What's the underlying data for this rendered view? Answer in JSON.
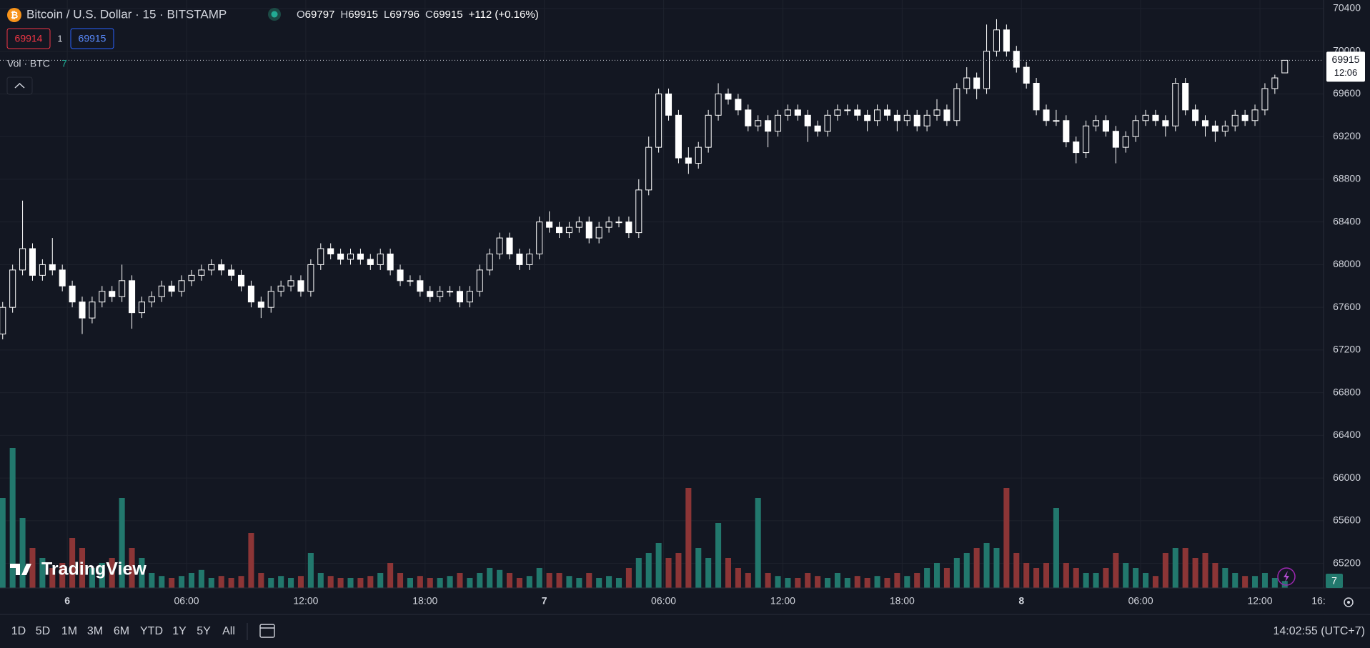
{
  "header": {
    "symbol": "Bitcoin / U.S. Dollar · 15 · BITSTAMP",
    "ohlc_labels": [
      "O",
      "H",
      "L",
      "C"
    ],
    "change": "+112 (+0.16%)",
    "sell": "69914",
    "spread": "1",
    "buy": "69915",
    "volume_label": "Vol · BTC",
    "countdown": "12:06",
    "logo": "TradingView"
  },
  "toolbar": {
    "ranges": [
      "1D",
      "5D",
      "1M",
      "3M",
      "6M",
      "YTD",
      "1Y",
      "5Y",
      "All"
    ],
    "clock": "14:02:55 (UTC+7)"
  },
  "chart_data": {
    "type": "candlestick",
    "up_color": "#ffffff",
    "down_color": "#ffffff",
    "volume_up_color": "#22786d",
    "volume_down_color": "#8c3536",
    "grid": true,
    "ylim": [
      64970,
      70480
    ],
    "yticks": [
      65200,
      65600,
      66000,
      66400,
      66800,
      67200,
      67600,
      68000,
      68400,
      68800,
      69200,
      69600,
      70000,
      70400
    ],
    "xlim": [
      -0.27,
      132.9
    ],
    "xticks": [
      {
        "value": 6.5,
        "label": "6"
      },
      {
        "value": 18.5,
        "label": "06:00"
      },
      {
        "value": 30.5,
        "label": "12:00"
      },
      {
        "value": 42.5,
        "label": "18:00"
      },
      {
        "value": 54.5,
        "label": "7"
      },
      {
        "value": 66.5,
        "label": "06:00"
      },
      {
        "value": 78.5,
        "label": "12:00"
      },
      {
        "value": 90.5,
        "label": "18:00"
      },
      {
        "value": 102.5,
        "label": "8"
      },
      {
        "value": 114.5,
        "label": "06:00"
      },
      {
        "value": 126.5,
        "label": "12:00"
      },
      {
        "value": 134.5,
        "label": "16:"
      }
    ],
    "volume_lim": [
      0,
      150
    ],
    "open": [
      67350,
      67600,
      67950,
      68150,
      67900,
      68000,
      67950,
      67800,
      67650,
      67500,
      67650,
      67750,
      67700,
      67850,
      67550,
      67650,
      67700,
      67800,
      67750,
      67850,
      67900,
      67950,
      68000,
      67950,
      67900,
      67800,
      67650,
      67600,
      67750,
      67800,
      67850,
      67750,
      68000,
      68150,
      68100,
      68050,
      68100,
      68050,
      68000,
      68100,
      67950,
      67850,
      67850,
      67750,
      67700,
      67750,
      67750,
      67650,
      67750,
      67950,
      68100,
      68250,
      68100,
      68000,
      68100,
      68400,
      68350,
      68300,
      68350,
      68400,
      68250,
      68350,
      68400,
      68400,
      68300,
      68700,
      69100,
      69600,
      69400,
      69000,
      68950,
      69100,
      69400,
      69600,
      69550,
      69450,
      69300,
      69350,
      69250,
      69400,
      69450,
      69400,
      69300,
      69250,
      69400,
      69450,
      69450,
      69400,
      69350,
      69450,
      69400,
      69350,
      69400,
      69300,
      69400,
      69450,
      69350,
      69650,
      69750,
      69650,
      70000,
      70200,
      70000,
      69850,
      69700,
      69450,
      69350,
      69350,
      69150,
      69050,
      69300,
      69350,
      69250,
      69100,
      69200,
      69350,
      69400,
      69350,
      69300,
      69700,
      69450,
      69350,
      69300,
      69250,
      69300,
      69400,
      69350,
      69450,
      69650,
      69797
    ],
    "high": [
      67650,
      68000,
      68600,
      68200,
      68050,
      68250,
      68000,
      67850,
      67700,
      67700,
      67800,
      67800,
      68000,
      67900,
      67700,
      67750,
      67850,
      67850,
      67900,
      67950,
      68000,
      68050,
      68050,
      68000,
      67950,
      67850,
      67700,
      67800,
      67850,
      67900,
      67900,
      68050,
      68200,
      68200,
      68150,
      68150,
      68150,
      68100,
      68150,
      68150,
      68000,
      67900,
      67900,
      67800,
      67800,
      67800,
      67800,
      67800,
      68000,
      68150,
      68300,
      68300,
      68150,
      68150,
      68450,
      68500,
      68400,
      68400,
      68450,
      68450,
      68400,
      68450,
      68450,
      68450,
      68800,
      69200,
      69650,
      69650,
      69450,
      69100,
      69150,
      69450,
      69700,
      69650,
      69600,
      69500,
      69400,
      69400,
      69450,
      69500,
      69500,
      69450,
      69350,
      69450,
      69500,
      69500,
      69500,
      69450,
      69500,
      69500,
      69450,
      69450,
      69450,
      69450,
      69550,
      69500,
      69700,
      69850,
      69800,
      70250,
      70300,
      70250,
      70050,
      69900,
      69750,
      69500,
      69450,
      69400,
      69200,
      69350,
      69400,
      69400,
      69300,
      69250,
      69400,
      69450,
      69450,
      69400,
      69750,
      69750,
      69500,
      69400,
      69350,
      69350,
      69450,
      69450,
      69500,
      69700,
      69780,
      69915
    ],
    "low": [
      67300,
      67550,
      67900,
      67850,
      67850,
      67900,
      67750,
      67600,
      67350,
      67450,
      67600,
      67650,
      67650,
      67400,
      67500,
      67600,
      67650,
      67700,
      67700,
      67800,
      67850,
      67900,
      67900,
      67850,
      67750,
      67600,
      67500,
      67550,
      67700,
      67750,
      67700,
      67700,
      67950,
      68050,
      68000,
      68000,
      68000,
      67950,
      67950,
      67900,
      67800,
      67800,
      67700,
      67650,
      67650,
      67700,
      67600,
      67600,
      67700,
      67900,
      68050,
      68050,
      67950,
      67950,
      68050,
      68300,
      68250,
      68250,
      68300,
      68200,
      68200,
      68300,
      68350,
      68250,
      68250,
      68650,
      69050,
      69350,
      68950,
      68850,
      68900,
      69050,
      69350,
      69500,
      69400,
      69250,
      69250,
      69100,
      69200,
      69350,
      69350,
      69150,
      69200,
      69200,
      69350,
      69400,
      69350,
      69250,
      69300,
      69350,
      69250,
      69300,
      69250,
      69250,
      69350,
      69300,
      69300,
      69600,
      69550,
      69600,
      69950,
      69950,
      69800,
      69650,
      69400,
      69300,
      69300,
      69100,
      68950,
      69000,
      69250,
      69200,
      68950,
      69050,
      69150,
      69300,
      69300,
      69200,
      69250,
      69400,
      69300,
      69200,
      69150,
      69200,
      69250,
      69300,
      69300,
      69400,
      69600,
      69796
    ],
    "close": [
      67600,
      67950,
      68150,
      67900,
      68000,
      67950,
      67800,
      67650,
      67500,
      67650,
      67750,
      67700,
      67850,
      67550,
      67650,
      67700,
      67800,
      67750,
      67850,
      67900,
      67950,
      68000,
      67950,
      67900,
      67800,
      67650,
      67600,
      67750,
      67800,
      67850,
      67750,
      68000,
      68150,
      68100,
      68050,
      68100,
      68050,
      68000,
      68100,
      67950,
      67850,
      67850,
      67750,
      67700,
      67750,
      67750,
      67650,
      67750,
      67950,
      68100,
      68250,
      68100,
      68000,
      68100,
      68400,
      68350,
      68300,
      68350,
      68400,
      68250,
      68350,
      68400,
      68400,
      68300,
      68700,
      69100,
      69600,
      69400,
      69000,
      68950,
      69100,
      69400,
      69600,
      69550,
      69450,
      69300,
      69350,
      69250,
      69400,
      69450,
      69400,
      69300,
      69250,
      69400,
      69450,
      69450,
      69400,
      69350,
      69450,
      69400,
      69350,
      69400,
      69300,
      69400,
      69450,
      69350,
      69650,
      69750,
      69650,
      70000,
      70200,
      70000,
      69850,
      69700,
      69450,
      69350,
      69350,
      69150,
      69050,
      69300,
      69350,
      69250,
      69100,
      69200,
      69350,
      69400,
      69350,
      69300,
      69700,
      69450,
      69350,
      69300,
      69250,
      69300,
      69400,
      69350,
      69450,
      69650,
      69750,
      69915
    ],
    "volume": [
      90,
      140,
      70,
      40,
      30,
      20,
      25,
      50,
      40,
      20,
      25,
      30,
      90,
      40,
      30,
      15,
      12,
      10,
      12,
      15,
      18,
      10,
      12,
      10,
      12,
      55,
      15,
      10,
      12,
      10,
      12,
      35,
      15,
      12,
      10,
      10,
      10,
      12,
      15,
      25,
      15,
      10,
      12,
      10,
      10,
      12,
      15,
      10,
      15,
      20,
      18,
      15,
      10,
      12,
      20,
      15,
      15,
      12,
      10,
      15,
      10,
      12,
      10,
      20,
      30,
      35,
      45,
      30,
      35,
      100,
      40,
      30,
      65,
      30,
      20,
      15,
      90,
      15,
      12,
      10,
      10,
      15,
      12,
      10,
      15,
      10,
      12,
      10,
      12,
      10,
      15,
      12,
      15,
      20,
      25,
      20,
      30,
      35,
      40,
      45,
      40,
      100,
      35,
      25,
      20,
      25,
      80,
      25,
      20,
      15,
      15,
      20,
      35,
      25,
      20,
      15,
      12,
      35,
      40,
      40,
      30,
      35,
      25,
      20,
      15,
      12,
      12,
      15,
      10,
      7
    ]
  }
}
